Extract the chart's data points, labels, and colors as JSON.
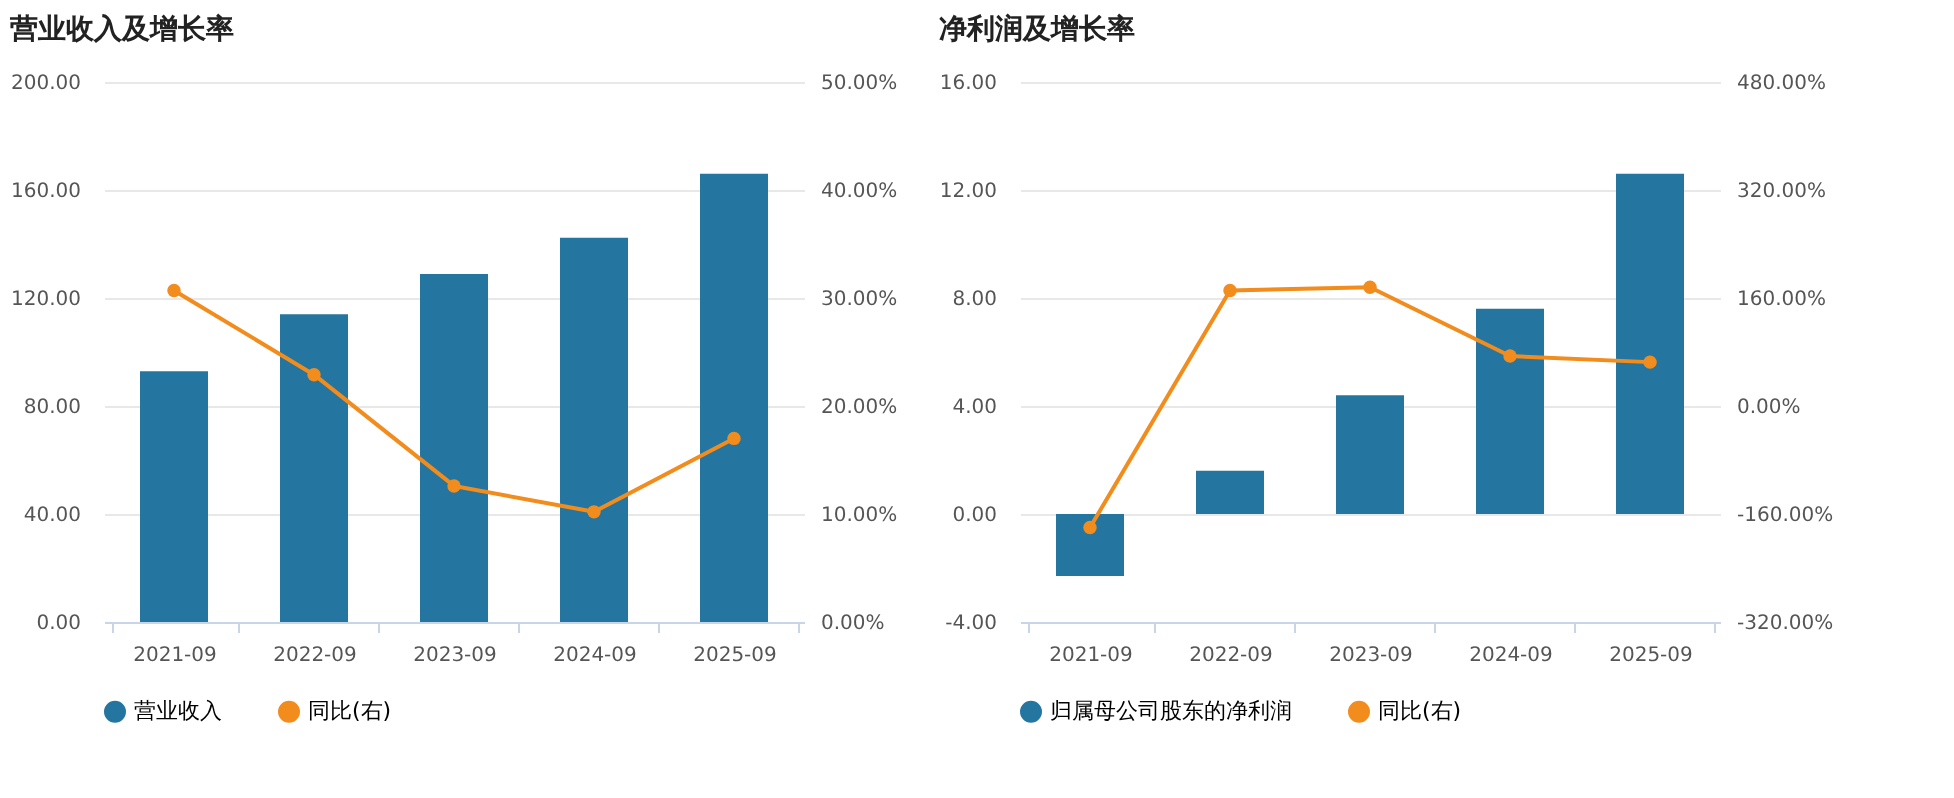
{
  "chart_data": [
    {
      "type": "bar",
      "title": "营业收入及增长率",
      "categories": [
        "2021-09",
        "2022-09",
        "2023-09",
        "2024-09",
        "2025-09"
      ],
      "series": [
        {
          "name": "营业收入",
          "color": "#2476a0",
          "values": [
            92.9,
            114,
            128.9,
            142.3,
            166
          ]
        },
        {
          "name": "同比(右)",
          "type": "line",
          "axis": "y2",
          "color": "#f28c1c",
          "line_style": "solid",
          "values": [
            30.7,
            22.9,
            12.6,
            10.2,
            17.0
          ]
        }
      ],
      "ylim": [
        0,
        200
      ],
      "yticks": [
        {
          "value": 0,
          "label": "0.00"
        },
        {
          "value": 40,
          "label": "40.00"
        },
        {
          "value": 80,
          "label": "80.00"
        },
        {
          "value": 120,
          "label": "120.00"
        },
        {
          "value": 160,
          "label": "160.00"
        },
        {
          "value": 200,
          "label": "200.00"
        }
      ],
      "y2lim": [
        0,
        50
      ],
      "y2ticks": [
        {
          "value": 0,
          "label": "0.00%"
        },
        {
          "value": 10,
          "label": "10.00%"
        },
        {
          "value": 20,
          "label": "20.00%"
        },
        {
          "value": 30,
          "label": "30.00%"
        },
        {
          "value": 40,
          "label": "40.00%"
        },
        {
          "value": 50,
          "label": "50.00%"
        }
      ],
      "grid": "y",
      "legend": "bottom",
      "marker": "circle"
    },
    {
      "type": "bar",
      "title": "净利润及增长率",
      "categories": [
        "2021-09",
        "2022-09",
        "2023-09",
        "2024-09",
        "2025-09"
      ],
      "series": [
        {
          "name": "归属母公司股东的净利润",
          "color": "#2476a0",
          "values": [
            -2.3,
            1.6,
            4.4,
            7.6,
            12.6
          ]
        },
        {
          "name": "同比(右)",
          "type": "line",
          "axis": "y2",
          "color": "#f28c1c",
          "line_style": "solid",
          "values": [
            -180,
            171,
            176,
            74,
            65
          ]
        }
      ],
      "ylim": [
        -4,
        16
      ],
      "yticks": [
        {
          "value": -4,
          "label": "-4.00"
        },
        {
          "value": 0,
          "label": "0.00"
        },
        {
          "value": 4,
          "label": "4.00"
        },
        {
          "value": 8,
          "label": "8.00"
        },
        {
          "value": 12,
          "label": "12.00"
        },
        {
          "value": 16,
          "label": "16.00"
        }
      ],
      "y2lim": [
        -320,
        480
      ],
      "y2ticks": [
        {
          "value": -320,
          "label": "-320.00%"
        },
        {
          "value": -160,
          "label": "-160.00%"
        },
        {
          "value": 0,
          "label": "0.00%"
        },
        {
          "value": 160,
          "label": "160.00%"
        },
        {
          "value": 320,
          "label": "320.00%"
        },
        {
          "value": 480,
          "label": "480.00%"
        }
      ],
      "grid": "y",
      "legend": "bottom",
      "marker": "circle"
    }
  ]
}
